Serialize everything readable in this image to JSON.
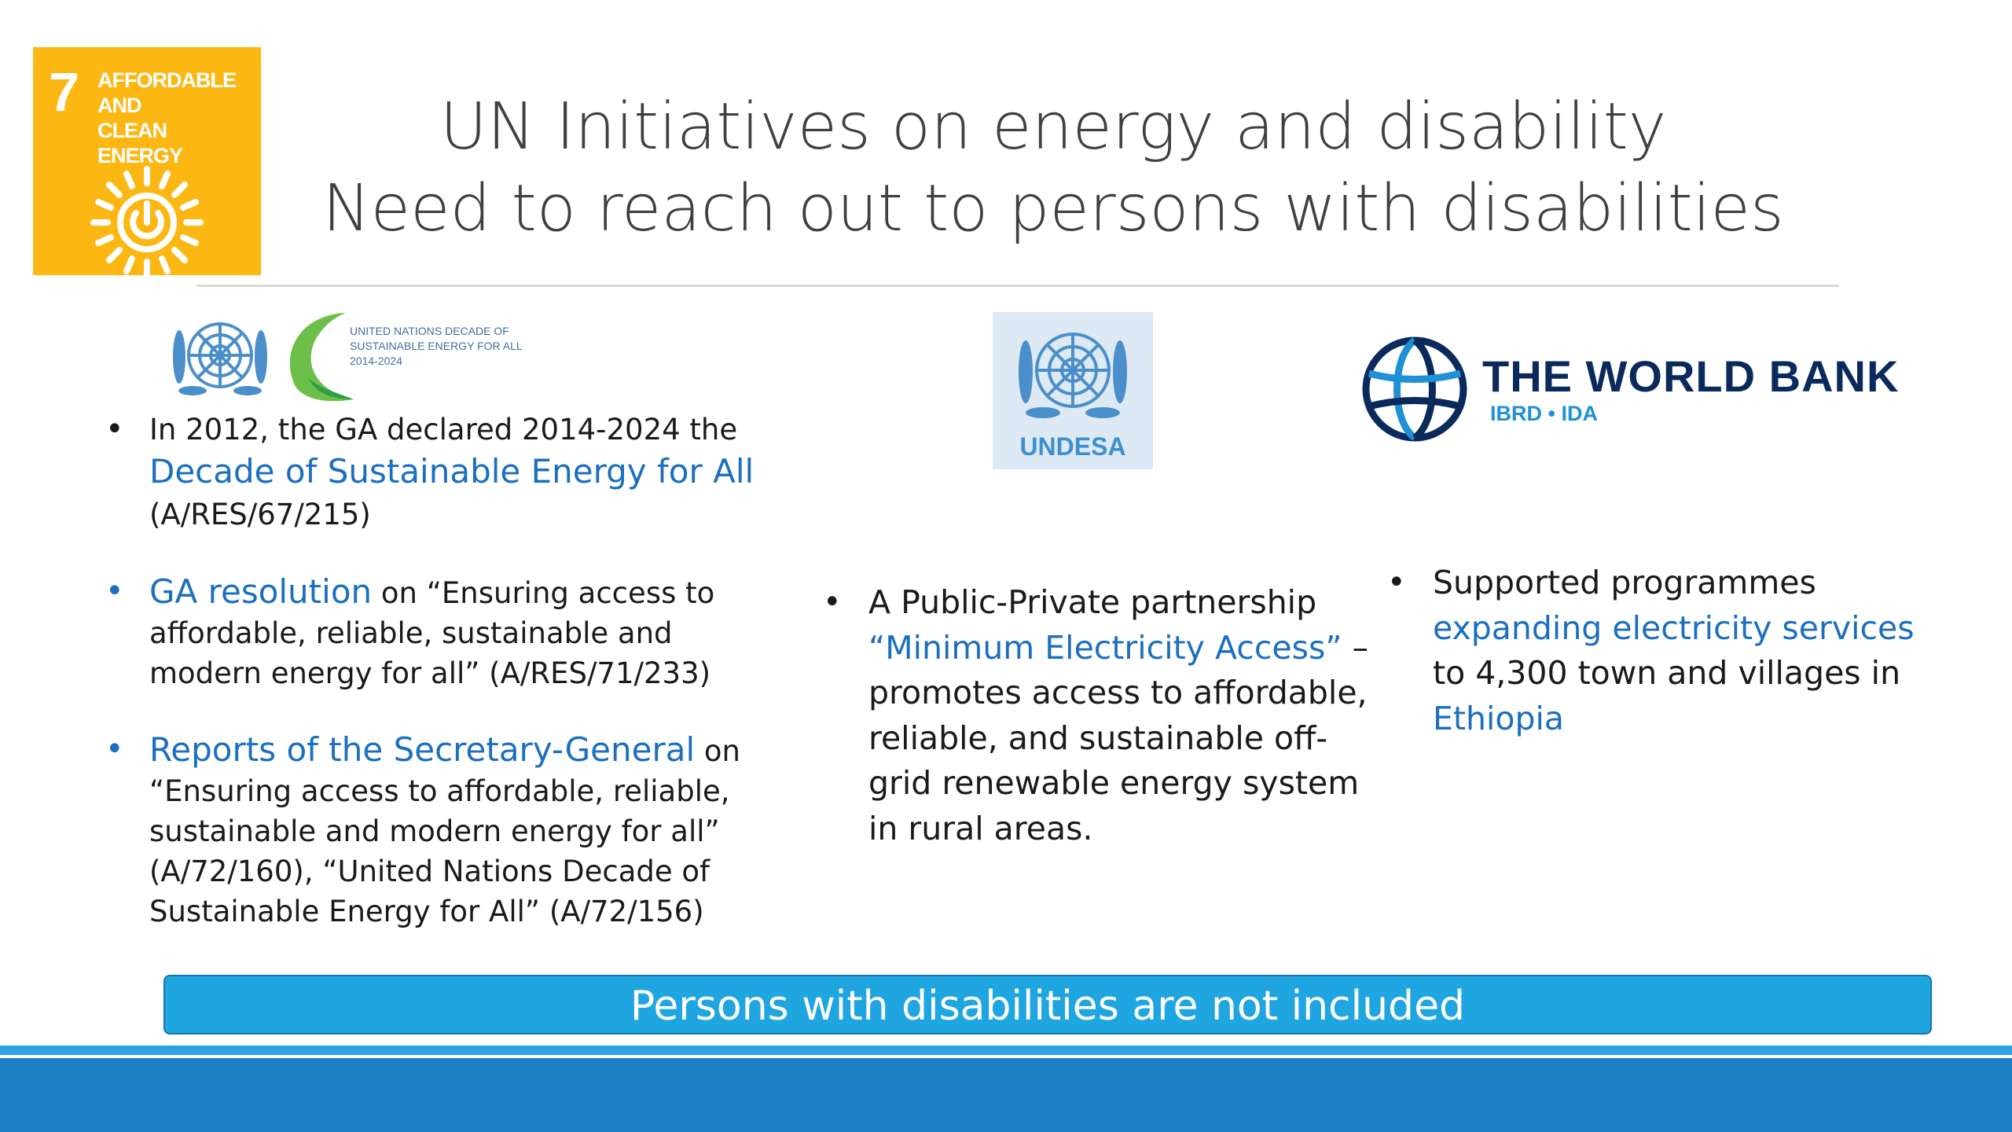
{
  "badge": {
    "number": "7",
    "goal": "AFFORDABLE AND\nCLEAN ENERGY",
    "color": "#fcb712",
    "icon": "sun-power-icon"
  },
  "title": {
    "line1": "UN Initiatives on energy and disability",
    "line2": "Need to reach out to persons with disabilities"
  },
  "logos": {
    "sedfa": {
      "emblem_icon": "un-emblem-icon",
      "swoosh_icon": "green-swoosh-icon",
      "text": "UNITED NATIONS DECADE OF\nSUSTAINABLE ENERGY FOR ALL\n2014-2024"
    },
    "undesa": {
      "emblem_icon": "un-emblem-icon",
      "label": "UNDESA"
    },
    "worldbank": {
      "globe_icon": "world-bank-globe-icon",
      "name": "THE WORLD BANK",
      "sub": "IBRD • IDA"
    }
  },
  "col1": {
    "b1": {
      "pre": "In 2012, the GA declared 2014-2024 the ",
      "link": "Decade of Sustainable Energy for All",
      "post": "(A/RES/67/215)"
    },
    "b2": {
      "link": "GA resolution",
      "post": " on “Ensuring access to affordable, reliable, sustainable and modern energy for all”  (A/RES/71/233)"
    },
    "b3": {
      "link": "Reports of the Secretary-General",
      "post": " on “Ensuring access to affordable, reliable, sustainable and modern energy for all” (A/72/160), “United Nations Decade of Sustainable Energy for All” (A/72/156)"
    }
  },
  "col2": {
    "b1": {
      "pre": "A Public-Private partnership ",
      "link": "“Minimum Electricity Access”",
      "post": " – promotes access to affordable, reliable, and sustainable off-grid renewable energy system in rural areas."
    }
  },
  "col3": {
    "b1": {
      "pre": "Supported programmes ",
      "link": "expanding electricity services",
      "mid": " to 4,300 town and villages in ",
      "link2": "Ethiopia"
    }
  },
  "bullet": "•",
  "banner": "Persons with disabilities are not included",
  "colors": {
    "link": "#1b6fbf",
    "banner": "#1fa5e0",
    "footer": "#1f7fc4"
  }
}
